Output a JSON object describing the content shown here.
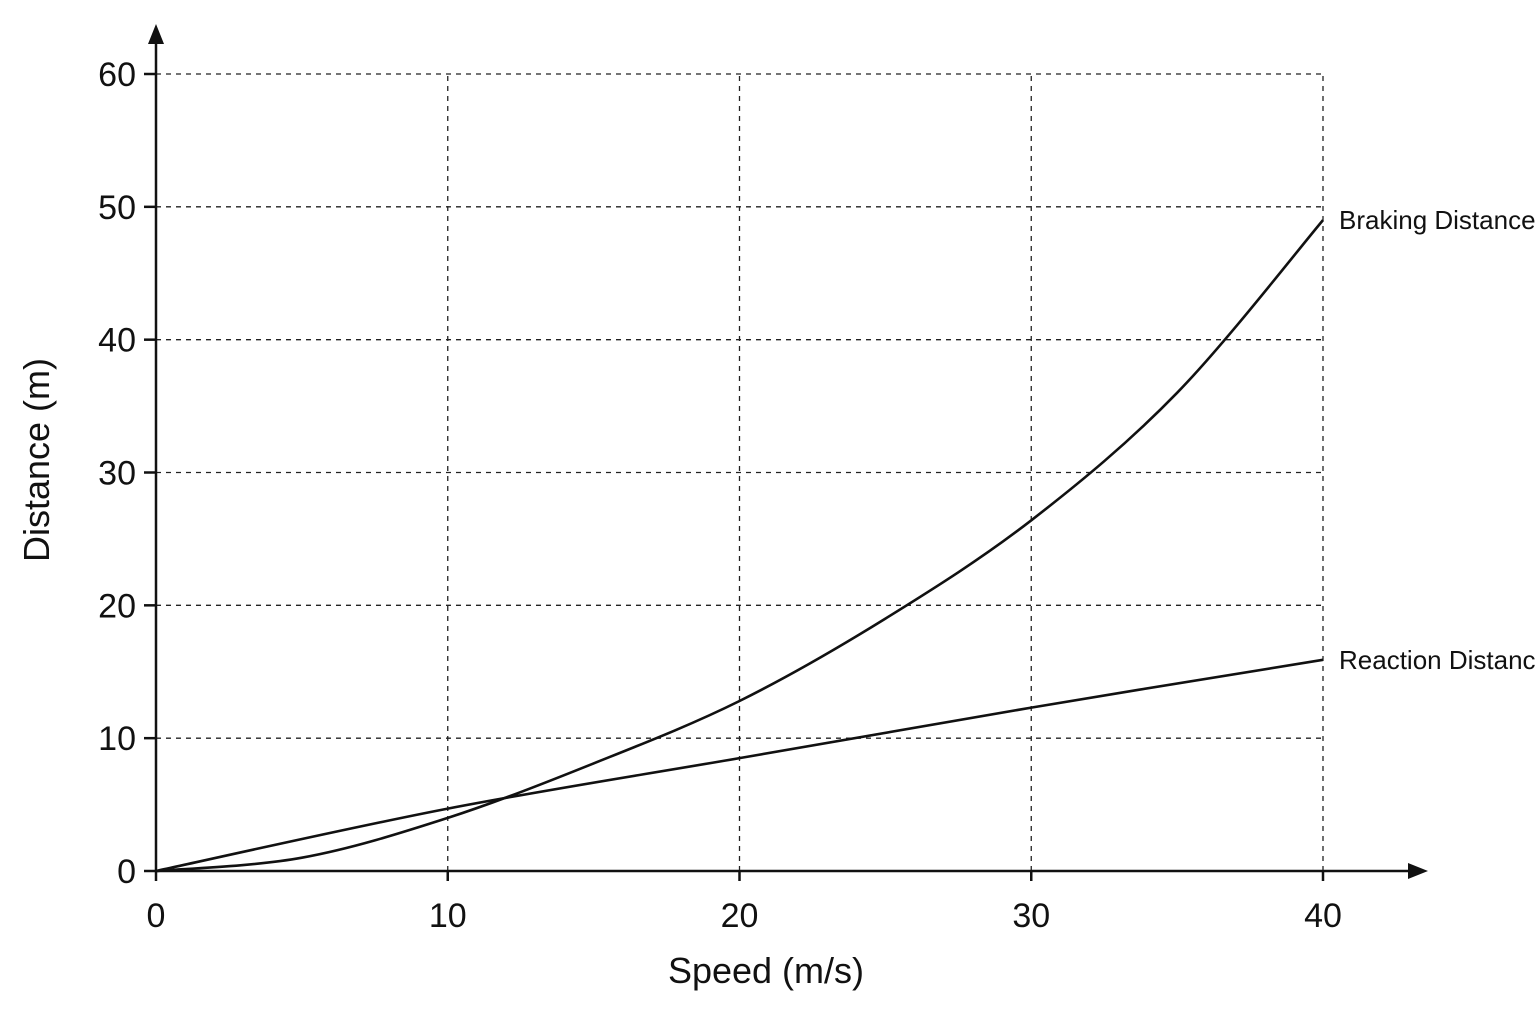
{
  "chart_data": {
    "type": "line",
    "title": "",
    "xlabel": "Speed (m/s)",
    "ylabel": "Distance (m)",
    "xlim": [
      0,
      40
    ],
    "ylim": [
      0,
      60
    ],
    "x_ticks": [
      0,
      10,
      20,
      30,
      40
    ],
    "y_ticks": [
      0,
      10,
      20,
      30,
      40,
      50,
      60
    ],
    "x_tick_labels": [
      "0",
      "10",
      "20",
      "30",
      "40"
    ],
    "y_tick_labels": [
      "0",
      "10",
      "20",
      "30",
      "40",
      "50",
      "60"
    ],
    "grid": true,
    "legend": "labels at line ends",
    "series": [
      {
        "name": "Braking Distance",
        "x": [
          0,
          5,
          10,
          15,
          20,
          25,
          30,
          35,
          40
        ],
        "y": [
          0,
          1.0,
          4.0,
          8.1,
          12.8,
          19.0,
          26.4,
          36.0,
          49.0
        ]
      },
      {
        "name": "Reaction Distance",
        "x": [
          0,
          10,
          20,
          30,
          40
        ],
        "y": [
          0,
          4.7,
          8.5,
          12.3,
          15.9
        ]
      }
    ]
  }
}
